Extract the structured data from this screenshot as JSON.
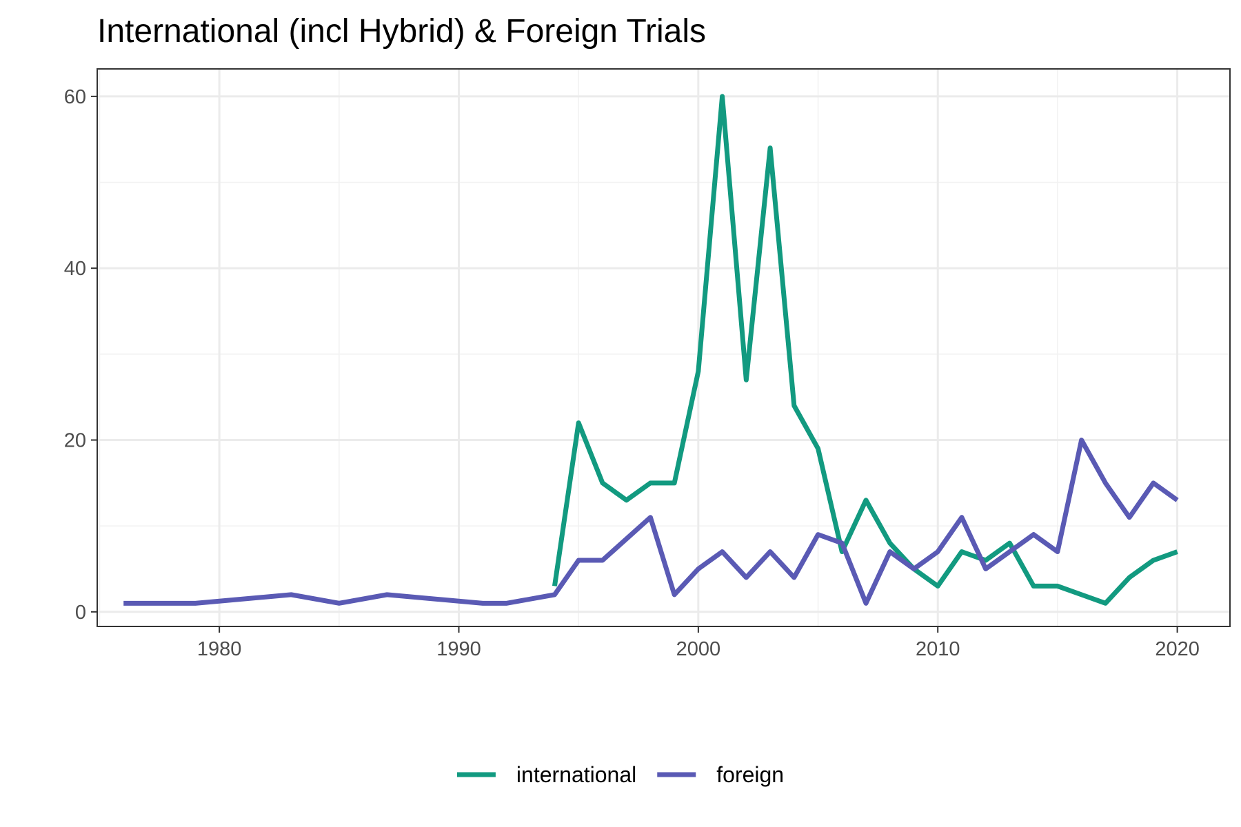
{
  "chart_data": {
    "type": "line",
    "title": "International (incl Hybrid) & Foreign Trials",
    "xlabel": "",
    "ylabel": "",
    "xlim": [
      1974.9,
      2022.2
    ],
    "ylim": [
      -1.7,
      63.2
    ],
    "x_ticks": [
      1980,
      1990,
      2000,
      2010,
      2020
    ],
    "y_ticks": [
      0,
      20,
      40,
      60
    ],
    "grid": true,
    "legend_position": "bottom",
    "series": [
      {
        "name": "international",
        "color": "#129a80",
        "points": [
          [
            1994,
            3
          ],
          [
            1995,
            22
          ],
          [
            1996,
            15
          ],
          [
            1997,
            13
          ],
          [
            1998,
            15
          ],
          [
            1999,
            15
          ],
          [
            2000,
            28
          ],
          [
            2001,
            60
          ],
          [
            2002,
            27
          ],
          [
            2003,
            54
          ],
          [
            2004,
            24
          ],
          [
            2005,
            19
          ],
          [
            2006,
            7
          ],
          [
            2007,
            13
          ],
          [
            2008,
            8
          ],
          [
            2009,
            5
          ],
          [
            2010,
            3
          ],
          [
            2011,
            7
          ],
          [
            2012,
            6
          ],
          [
            2013,
            8
          ],
          [
            2014,
            3
          ],
          [
            2015,
            3
          ],
          [
            2016,
            2
          ],
          [
            2017,
            1
          ],
          [
            2018,
            4
          ],
          [
            2019,
            6
          ],
          [
            2020,
            7
          ]
        ]
      },
      {
        "name": "foreign",
        "color": "#5a5ab4",
        "points": [
          [
            1976,
            1
          ],
          [
            1979,
            1
          ],
          [
            1983,
            2
          ],
          [
            1985,
            1
          ],
          [
            1987,
            2
          ],
          [
            1991,
            1
          ],
          [
            1992,
            1
          ],
          [
            1994,
            2
          ],
          [
            1995,
            6
          ],
          [
            1996,
            6
          ],
          [
            1997,
            8.5
          ],
          [
            1998,
            11
          ],
          [
            1999,
            2
          ],
          [
            2000,
            5
          ],
          [
            2001,
            7
          ],
          [
            2002,
            4
          ],
          [
            2003,
            7
          ],
          [
            2004,
            4
          ],
          [
            2005,
            9
          ],
          [
            2006,
            8
          ],
          [
            2007,
            1
          ],
          [
            2008,
            7
          ],
          [
            2009,
            5
          ],
          [
            2010,
            7
          ],
          [
            2011,
            11
          ],
          [
            2012,
            5
          ],
          [
            2013,
            7
          ],
          [
            2014,
            9
          ],
          [
            2015,
            7
          ],
          [
            2016,
            20
          ],
          [
            2017,
            15
          ],
          [
            2018,
            11
          ],
          [
            2019,
            15
          ],
          [
            2020,
            13
          ]
        ]
      }
    ]
  }
}
